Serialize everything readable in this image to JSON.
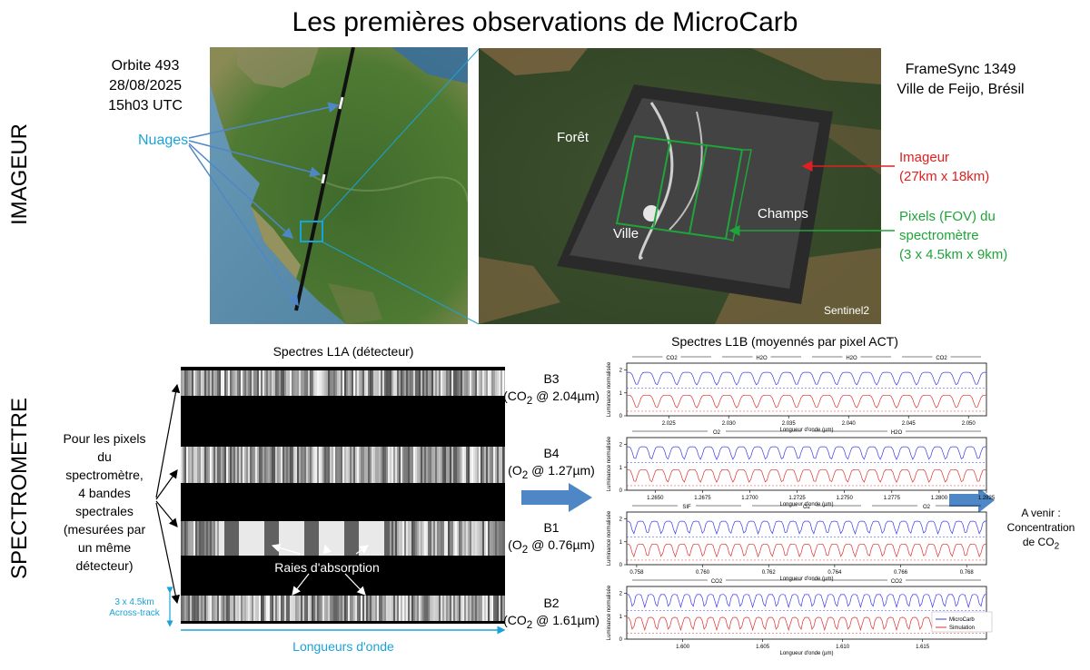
{
  "title": "Les premières observations de MicroCarb",
  "sections": {
    "imageur": "IMAGEUR",
    "spectrometre": "SPECTROMETRE"
  },
  "orbit": {
    "line1": "Orbite 493",
    "line2": "28/08/2025",
    "line3": "15h03 UTC"
  },
  "labels": {
    "nuages": "Nuages",
    "framesync_line1": "FrameSync 1349",
    "framesync_line2": "Ville de Feijo, Brésil",
    "foret": "Forêt",
    "ville": "Ville",
    "champs": "Champs",
    "sentinel": "Sentinel2",
    "imageur_line1": "Imageur",
    "imageur_line2": "(27km x 18km)",
    "pixels_line1": "Pixels (FOV) du",
    "pixels_line2": "spectromètre",
    "pixels_line3": "(3 x 4.5km x 9km)"
  },
  "l1a": {
    "title": "Spectres L1A (détecteur)",
    "left_text": [
      "Pour les pixels",
      "du",
      "spectromètre,",
      "4 bandes",
      "spectrales",
      "(mesurées par",
      "un même",
      "détecteur)"
    ],
    "absorption": "Raies d'absorption",
    "across_line1": "3 x 4.5km",
    "across_line2": "Across-track",
    "wavelengths": "Longueurs d'onde"
  },
  "bands": [
    {
      "name": "B3",
      "species": "CO",
      "sub": "2",
      "wl": " @ 2.04µm)"
    },
    {
      "name": "B4",
      "species": "O",
      "sub": "2",
      "wl": " @ 1.27µm)"
    },
    {
      "name": "B1",
      "species": "O",
      "sub": "2",
      "wl": " @ 0.76µm)"
    },
    {
      "name": "B2",
      "species": "CO",
      "sub": "2",
      "wl": " @ 1.61µm)"
    }
  ],
  "l1b": {
    "title": "Spectres L1B (moyennés par pixel ACT)",
    "ylabel": "Luminance normalisée",
    "xlabel": "Longueur d'onde (µm)",
    "legend": [
      "MicroCarb",
      "Simulation"
    ]
  },
  "future": {
    "line1": "A venir :",
    "line2": "Concentration",
    "line3_prefix": "de CO",
    "line3_sub": "2"
  },
  "colors": {
    "microcarb": "#3a3ae8",
    "simulation": "#e03030",
    "accent_blue": "#1aa3d9",
    "red": "#e02020",
    "green": "#1fa43a",
    "arrow": "#4f87c6"
  },
  "chart_data": [
    {
      "type": "line",
      "band": "B3",
      "x_ticks": [
        "2.025",
        "2.030",
        "2.035",
        "2.040",
        "2.045",
        "2.050"
      ],
      "xlim": [
        2.0215,
        2.0515
      ],
      "y_ticks": [
        "0",
        "1",
        "2"
      ],
      "ylim": [
        0,
        2.3
      ],
      "annotations": [
        "CO2",
        "H2O",
        "H2O",
        "CO2"
      ],
      "series": [
        {
          "name": "MicroCarb",
          "baseline": 1.9
        },
        {
          "name": "Simulation",
          "baseline": 0.9
        }
      ]
    },
    {
      "type": "line",
      "band": "B4",
      "x_ticks": [
        "1.2650",
        "1.2675",
        "1.2700",
        "1.2725",
        "1.2750",
        "1.2775",
        "1.2800",
        "1.2825"
      ],
      "xlim": [
        1.2635,
        1.2825
      ],
      "y_ticks": [
        "0",
        "1",
        "2"
      ],
      "ylim": [
        0,
        2.3
      ],
      "annotations": [
        "O2",
        "H2O"
      ],
      "series": [
        {
          "name": "MicroCarb",
          "baseline": 1.9
        },
        {
          "name": "Simulation",
          "baseline": 0.9
        }
      ]
    },
    {
      "type": "line",
      "band": "B1",
      "x_ticks": [
        "0.758",
        "0.760",
        "0.762",
        "0.764",
        "0.766",
        "0.768"
      ],
      "xlim": [
        0.7577,
        0.7686
      ],
      "y_ticks": [
        "0",
        "1",
        "2"
      ],
      "ylim": [
        0,
        2.3
      ],
      "annotations": [
        "SIF",
        "O2",
        "O2"
      ],
      "series": [
        {
          "name": "MicroCarb",
          "baseline": 1.9
        },
        {
          "name": "Simulation",
          "baseline": 0.9
        }
      ]
    },
    {
      "type": "line",
      "band": "B2",
      "x_ticks": [
        "1.600",
        "1.605",
        "1.610",
        "1.615"
      ],
      "xlim": [
        1.5965,
        1.619
      ],
      "y_ticks": [
        "0",
        "1",
        "2"
      ],
      "ylim": [
        0,
        2.3
      ],
      "annotations": [
        "CO2",
        "CO2"
      ],
      "series": [
        {
          "name": "MicroCarb",
          "baseline": 1.95
        },
        {
          "name": "Simulation",
          "baseline": 0.95
        }
      ]
    }
  ]
}
